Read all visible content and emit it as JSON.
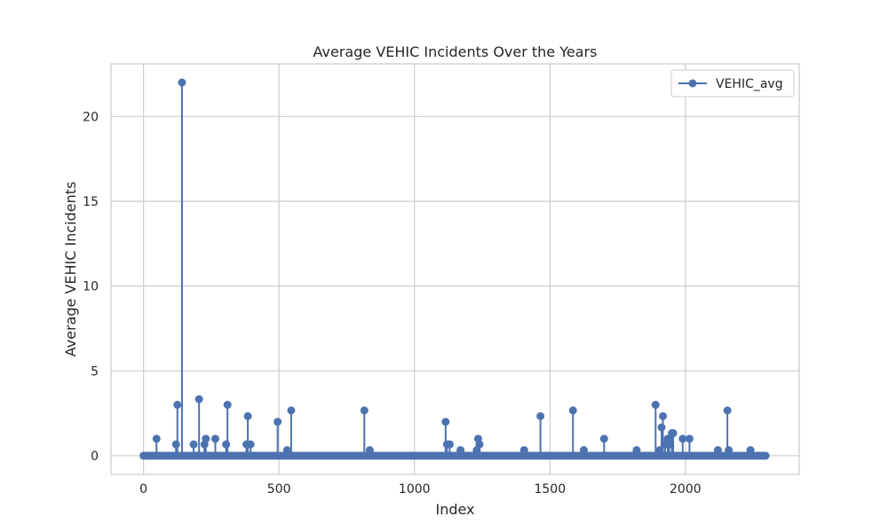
{
  "chart_data": {
    "type": "line",
    "title": "Average VEHIC Incidents Over the Years",
    "xlabel": "Index",
    "ylabel": "Average VEHIC Incidents",
    "xlim": [
      -120,
      2420
    ],
    "ylim": [
      -1.1,
      23.1
    ],
    "xticks": [
      0,
      500,
      1000,
      1500,
      2000
    ],
    "yticks": [
      0,
      5,
      10,
      15,
      20
    ],
    "grid": true,
    "legend_position": "top-right",
    "series_color": "#4c72b0",
    "x_max": 2300,
    "series": [
      {
        "name": "VEHIC_avg",
        "baseline": 0,
        "nonzero": [
          [
            48,
            1
          ],
          [
            120,
            0.67
          ],
          [
            125,
            3
          ],
          [
            142,
            22
          ],
          [
            185,
            0.67
          ],
          [
            205,
            3.33
          ],
          [
            225,
            0.67
          ],
          [
            230,
            1
          ],
          [
            265,
            1
          ],
          [
            305,
            0.67
          ],
          [
            310,
            3
          ],
          [
            380,
            0.67
          ],
          [
            385,
            2.33
          ],
          [
            395,
            0.67
          ],
          [
            495,
            2
          ],
          [
            530,
            0.33
          ],
          [
            545,
            2.67
          ],
          [
            815,
            2.67
          ],
          [
            835,
            0.33
          ],
          [
            1115,
            2
          ],
          [
            1120,
            0.67
          ],
          [
            1130,
            0.67
          ],
          [
            1170,
            0.33
          ],
          [
            1230,
            0.33
          ],
          [
            1235,
            1
          ],
          [
            1240,
            0.67
          ],
          [
            1405,
            0.33
          ],
          [
            1465,
            2.33
          ],
          [
            1585,
            2.67
          ],
          [
            1625,
            0.33
          ],
          [
            1700,
            1
          ],
          [
            1820,
            0.33
          ],
          [
            1890,
            3
          ],
          [
            1905,
            0.33
          ],
          [
            1912,
            1.67
          ],
          [
            1917,
            2.33
          ],
          [
            1925,
            0.67
          ],
          [
            1935,
            1
          ],
          [
            1940,
            0.67
          ],
          [
            1950,
            1.33
          ],
          [
            1955,
            1.33
          ],
          [
            1990,
            1
          ],
          [
            2015,
            1
          ],
          [
            2120,
            0.33
          ],
          [
            2155,
            2.67
          ],
          [
            2160,
            0.33
          ],
          [
            2240,
            0.33
          ]
        ]
      }
    ]
  }
}
